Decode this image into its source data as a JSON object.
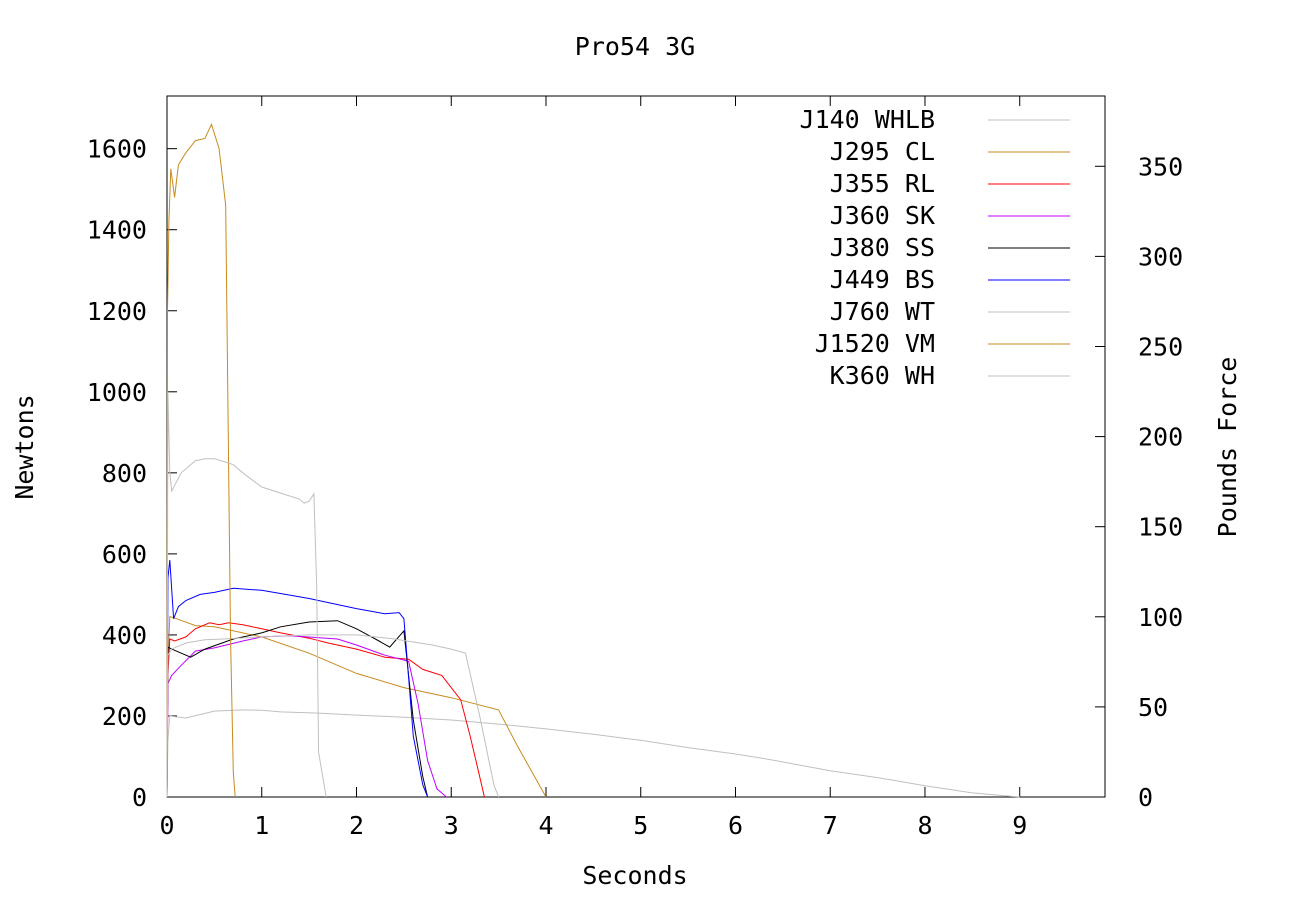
{
  "chart_data": {
    "type": "line",
    "title": "Pro54 3G",
    "xlabel": "Seconds",
    "ylabel": "Newtons",
    "y2label": "Pounds Force",
    "xlim": [
      0,
      9.9
    ],
    "ylim": [
      0,
      1730
    ],
    "y2lim": [
      0,
      389
    ],
    "x_ticks": [
      0,
      1,
      2,
      3,
      4,
      5,
      6,
      7,
      8,
      9
    ],
    "y_ticks": [
      0,
      200,
      400,
      600,
      800,
      1000,
      1200,
      1400,
      1600
    ],
    "y2_ticks": [
      0,
      50,
      100,
      150,
      200,
      250,
      300,
      350
    ],
    "grid": false,
    "legend_position": "top-right",
    "series": [
      {
        "name": "J140 WHLB",
        "color": "#c0c0c0",
        "points": [
          [
            0,
            0
          ],
          [
            0.01,
            140
          ],
          [
            0.03,
            200
          ],
          [
            0.2,
            195
          ],
          [
            0.5,
            212
          ],
          [
            0.8,
            215
          ],
          [
            1.0,
            214
          ],
          [
            1.2,
            210
          ],
          [
            1.6,
            207
          ],
          [
            2.0,
            202
          ],
          [
            2.5,
            197
          ],
          [
            3.0,
            190
          ],
          [
            3.5,
            180
          ],
          [
            4.0,
            168
          ],
          [
            4.5,
            155
          ],
          [
            5.0,
            140
          ],
          [
            5.5,
            122
          ],
          [
            6.0,
            106
          ],
          [
            6.3,
            95
          ],
          [
            7.0,
            65
          ],
          [
            7.5,
            48
          ],
          [
            8.0,
            28
          ],
          [
            8.5,
            10
          ],
          [
            8.9,
            2
          ],
          [
            9.0,
            0
          ]
        ]
      },
      {
        "name": "J295 CL",
        "color": "#c88a1e",
        "points": [
          [
            0,
            0
          ],
          [
            0.01,
            330
          ],
          [
            0.03,
            445
          ],
          [
            0.1,
            440
          ],
          [
            0.3,
            423
          ],
          [
            0.5,
            420
          ],
          [
            1.0,
            395
          ],
          [
            1.5,
            355
          ],
          [
            2.0,
            305
          ],
          [
            2.5,
            270
          ],
          [
            3.0,
            245
          ],
          [
            3.5,
            215
          ],
          [
            3.7,
            125
          ],
          [
            4.0,
            0
          ]
        ]
      },
      {
        "name": "J355 RL",
        "color": "#ff0000",
        "points": [
          [
            0,
            0
          ],
          [
            0.01,
            300
          ],
          [
            0.03,
            390
          ],
          [
            0.08,
            385
          ],
          [
            0.2,
            395
          ],
          [
            0.3,
            415
          ],
          [
            0.45,
            430
          ],
          [
            0.55,
            425
          ],
          [
            0.65,
            430
          ],
          [
            0.8,
            425
          ],
          [
            1.0,
            415
          ],
          [
            1.2,
            405
          ],
          [
            1.5,
            392
          ],
          [
            1.7,
            380
          ],
          [
            2.0,
            365
          ],
          [
            2.3,
            345
          ],
          [
            2.55,
            340
          ],
          [
            2.7,
            315
          ],
          [
            2.9,
            300
          ],
          [
            3.1,
            240
          ],
          [
            3.2,
            150
          ],
          [
            3.3,
            50
          ],
          [
            3.35,
            0
          ]
        ]
      },
      {
        "name": "J360 SK",
        "color": "#c000ff",
        "points": [
          [
            0,
            0
          ],
          [
            0.01,
            280
          ],
          [
            0.05,
            300
          ],
          [
            0.15,
            325
          ],
          [
            0.3,
            360
          ],
          [
            0.5,
            368
          ],
          [
            0.8,
            385
          ],
          [
            1.0,
            395
          ],
          [
            1.3,
            398
          ],
          [
            1.8,
            390
          ],
          [
            2.0,
            375
          ],
          [
            2.3,
            350
          ],
          [
            2.55,
            335
          ],
          [
            2.65,
            230
          ],
          [
            2.75,
            90
          ],
          [
            2.85,
            20
          ],
          [
            2.95,
            0
          ]
        ]
      },
      {
        "name": "J380 SS",
        "color": "#000000",
        "points": [
          [
            0,
            0
          ],
          [
            0.01,
            370
          ],
          [
            0.05,
            365
          ],
          [
            0.25,
            345
          ],
          [
            0.4,
            365
          ],
          [
            0.7,
            390
          ],
          [
            1.0,
            405
          ],
          [
            1.2,
            420
          ],
          [
            1.5,
            432
          ],
          [
            1.8,
            435
          ],
          [
            2.0,
            415
          ],
          [
            2.2,
            390
          ],
          [
            2.35,
            370
          ],
          [
            2.5,
            410
          ],
          [
            2.6,
            190
          ],
          [
            2.7,
            50
          ],
          [
            2.75,
            0
          ]
        ]
      },
      {
        "name": "J449 BS",
        "color": "#0000ff",
        "points": [
          [
            0,
            0
          ],
          [
            0.01,
            540
          ],
          [
            0.03,
            585
          ],
          [
            0.07,
            440
          ],
          [
            0.12,
            470
          ],
          [
            0.2,
            485
          ],
          [
            0.35,
            500
          ],
          [
            0.5,
            505
          ],
          [
            0.7,
            515
          ],
          [
            1.0,
            510
          ],
          [
            1.5,
            490
          ],
          [
            2.0,
            465
          ],
          [
            2.3,
            452
          ],
          [
            2.45,
            455
          ],
          [
            2.5,
            440
          ],
          [
            2.6,
            150
          ],
          [
            2.7,
            30
          ],
          [
            2.75,
            0
          ]
        ]
      },
      {
        "name": "J760 WT",
        "color": "#c0c0c0",
        "points": [
          [
            0,
            0
          ],
          [
            0.01,
            350
          ],
          [
            0.05,
            365
          ],
          [
            0.2,
            380
          ],
          [
            0.4,
            388
          ],
          [
            0.6,
            390
          ],
          [
            1.0,
            395
          ],
          [
            1.5,
            400
          ],
          [
            2.0,
            400
          ],
          [
            2.4,
            390
          ],
          [
            2.8,
            375
          ],
          [
            3.0,
            365
          ],
          [
            3.15,
            355
          ],
          [
            3.3,
            200
          ],
          [
            3.45,
            30
          ],
          [
            3.5,
            0
          ]
        ]
      },
      {
        "name": "J1520 VM",
        "color": "#c88a1e",
        "points": [
          [
            0,
            0
          ],
          [
            0.005,
            1200
          ],
          [
            0.02,
            1420
          ],
          [
            0.04,
            1550
          ],
          [
            0.08,
            1480
          ],
          [
            0.12,
            1560
          ],
          [
            0.2,
            1590
          ],
          [
            0.3,
            1620
          ],
          [
            0.4,
            1625
          ],
          [
            0.47,
            1660
          ],
          [
            0.55,
            1600
          ],
          [
            0.62,
            1460
          ],
          [
            0.67,
            400
          ],
          [
            0.7,
            60
          ],
          [
            0.72,
            0
          ]
        ]
      },
      {
        "name": "K360 WH",
        "color": "#c0c0c0",
        "points": [
          [
            0,
            0
          ],
          [
            0.01,
            1000
          ],
          [
            0.03,
            800
          ],
          [
            0.05,
            755
          ],
          [
            0.15,
            800
          ],
          [
            0.3,
            830
          ],
          [
            0.4,
            835
          ],
          [
            0.5,
            835
          ],
          [
            0.6,
            828
          ],
          [
            0.7,
            820
          ],
          [
            0.8,
            800
          ],
          [
            1.0,
            765
          ],
          [
            1.2,
            750
          ],
          [
            1.4,
            735
          ],
          [
            1.45,
            725
          ],
          [
            1.5,
            730
          ],
          [
            1.55,
            748
          ],
          [
            1.58,
            520
          ],
          [
            1.6,
            110
          ],
          [
            1.68,
            0
          ]
        ]
      }
    ]
  }
}
